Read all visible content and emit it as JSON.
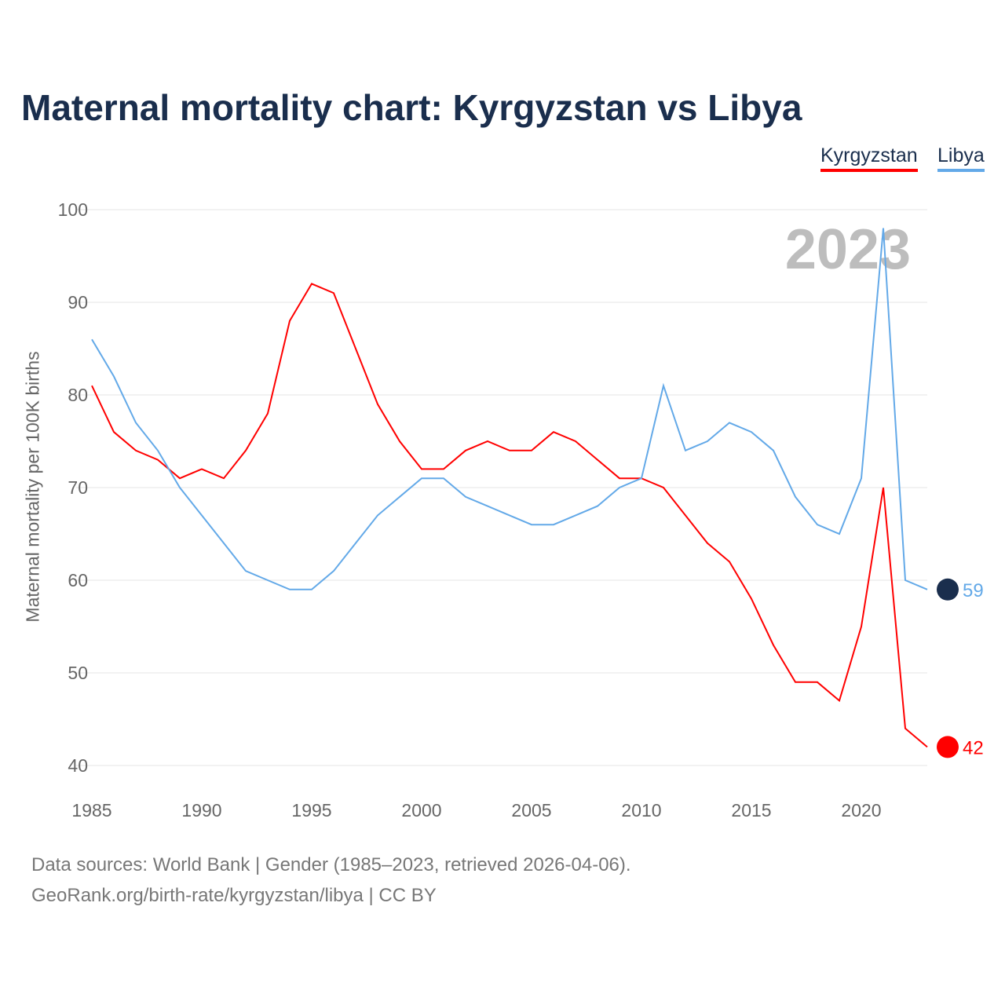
{
  "chart_data": {
    "type": "line",
    "title": "Maternal mortality chart: Kyrgyzstan vs Libya",
    "ylabel": "Maternal mortality per 100K births",
    "xlabel": "",
    "ylim": [
      40,
      100
    ],
    "xlim": [
      1985,
      2023
    ],
    "yticks": [
      40,
      50,
      60,
      70,
      80,
      90,
      100
    ],
    "xticks": [
      1985,
      1990,
      1995,
      2000,
      2005,
      2010,
      2015,
      2020
    ],
    "year_label": "2023",
    "grid": true,
    "legend_position": "top-right",
    "x": [
      1985,
      1986,
      1987,
      1988,
      1989,
      1990,
      1991,
      1992,
      1993,
      1994,
      1995,
      1996,
      1997,
      1998,
      1999,
      2000,
      2001,
      2002,
      2003,
      2004,
      2005,
      2006,
      2007,
      2008,
      2009,
      2010,
      2011,
      2012,
      2013,
      2014,
      2015,
      2016,
      2017,
      2018,
      2019,
      2020,
      2021,
      2022,
      2023
    ],
    "series": [
      {
        "name": "Kyrgyzstan",
        "color": "#ff0000",
        "end_label": "42",
        "values": [
          81,
          76,
          74,
          73,
          71,
          72,
          71,
          74,
          78,
          88,
          92,
          91,
          85,
          79,
          75,
          72,
          72,
          74,
          75,
          74,
          74,
          76,
          75,
          73,
          71,
          71,
          70,
          67,
          64,
          62,
          58,
          53,
          49,
          49,
          47,
          55,
          70,
          44,
          42
        ]
      },
      {
        "name": "Libya",
        "color": "#63a9e8",
        "end_label": "59",
        "values": [
          86,
          82,
          77,
          74,
          70,
          67,
          64,
          61,
          60,
          59,
          59,
          61,
          64,
          67,
          69,
          71,
          71,
          69,
          68,
          67,
          66,
          66,
          67,
          68,
          70,
          71,
          81,
          74,
          75,
          77,
          76,
          74,
          69,
          66,
          65,
          71,
          98,
          60,
          59
        ]
      }
    ]
  },
  "footer": {
    "line1": "Data sources: World Bank | Gender (1985–2023, retrieved 2026-04-06).",
    "line2": "GeoRank.org/birth-rate/kyrgyzstan/libya | CC BY"
  }
}
